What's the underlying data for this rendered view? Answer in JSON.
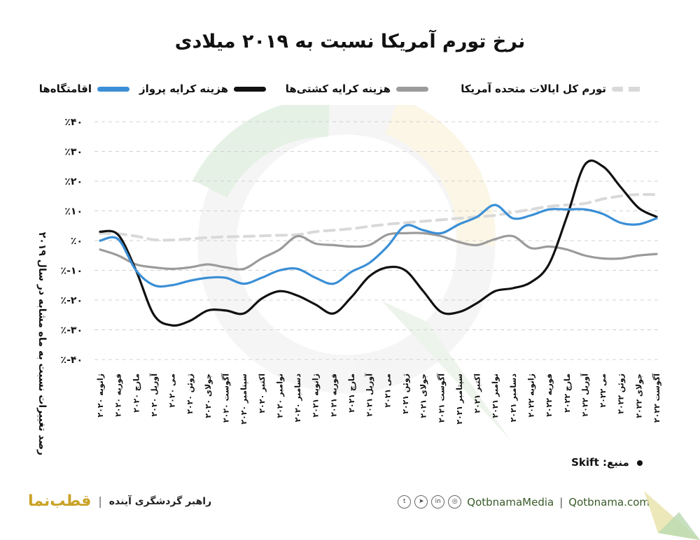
{
  "title": "نرخ تورم آمریکا نسبت به ۲۰۱۹ میلادی",
  "legend": [
    {
      "label": "تورم کل ایالات متحده آمریکا",
      "color": "#d9d9d9",
      "style": "dashed"
    },
    {
      "label": "هزینه کرایه کشتی‌ها",
      "color": "#9b9b9b",
      "style": "solid"
    },
    {
      "label": "هزینه کرایه پرواز",
      "color": "#111111",
      "style": "solid"
    },
    {
      "label": "اقامتگاه‌ها",
      "color": "#3a8fd6",
      "style": "solid"
    }
  ],
  "source": {
    "label": "منبع: Skift"
  },
  "footer": {
    "brand": "قطب‌نما",
    "tagline": "راهبر گردشگری آینده",
    "divider": "|",
    "handle": "QotbnamaMedia",
    "site": "Qotbnama.com",
    "separator": "|",
    "social_icons": [
      "twitter-icon",
      "telegram-icon",
      "linkedin-icon",
      "instagram-icon"
    ]
  },
  "chart_data": {
    "type": "line",
    "ylabel": "درصد تغییرات نسبت به ماه مشابه در سال ۲۰۱۹",
    "ylim": [
      -40,
      40
    ],
    "yticks": [
      40,
      30,
      20,
      10,
      0,
      -10,
      -20,
      -30,
      -40
    ],
    "ytick_labels": [
      "٪۴۰",
      "٪۳۰",
      "٪۲۰",
      "٪۱۰",
      "٪۰",
      "٪-۱۰",
      "٪-۲۰",
      "٪-۳۰",
      "٪-۴۰"
    ],
    "grid": "horizontal dashed",
    "categories": [
      "ژانویه ۲۰۲۰",
      "فوریه ۲۰۲۰",
      "مارچ ۲۰۲۰",
      "آوریل ۲۰۲۰",
      "می ۲۰۲۰",
      "ژوئن ۲۰۲۰",
      "جولای ۲۰۲۰",
      "آگوست ۲۰۲۰",
      "سپتامبر ۲۰۲۰",
      "اکتبر ۲۰۲۰",
      "نوامبر ۲۰۲۰",
      "دسامبر ۲۰۲۰",
      "ژانویه ۲۰۲۱",
      "فوریه ۲۰۲۱",
      "مارچ ۲۰۲۱",
      "آوریل ۲۰۲۱",
      "می ۲۰۲۱",
      "ژوئن ۲۰۲۱",
      "جولای ۲۰۲۱",
      "آگوست ۲۰۲۱",
      "سپتامبر ۲۰۲۱",
      "اکتبر ۲۰۲۱",
      "نوامبر ۲۰۲۱",
      "دسامبر ۲۰۲۱",
      "ژانویه ۲۰۲۲",
      "فوریه ۲۰۲۲",
      "مارچ ۲۰۲۲",
      "آوریل ۲۰۲۲",
      "می ۲۰۲۲",
      "ژوئن ۲۰۲۲",
      "جولای ۲۰۲۲",
      "آگوست ۲۰۲۲"
    ],
    "series": [
      {
        "name": "تورم کل ایالات متحده آمریکا",
        "color": "#d9d9d9",
        "dashed": true,
        "values": [
          2.5,
          2.3,
          1.5,
          0.3,
          0.2,
          0.6,
          1.0,
          1.3,
          1.4,
          1.6,
          1.8,
          2.0,
          3.0,
          3.5,
          4.0,
          4.8,
          5.5,
          6.0,
          6.5,
          7.0,
          7.5,
          8.0,
          8.5,
          9.5,
          10.5,
          11.5,
          12.0,
          12.5,
          14.0,
          15.0,
          15.5,
          15.5
        ]
      },
      {
        "name": "هزینه کرایه کشتی‌ها",
        "color": "#9b9b9b",
        "dashed": false,
        "values": [
          -3,
          -5,
          -8,
          -9,
          -9.5,
          -9,
          -8,
          -9,
          -9.5,
          -6,
          -3,
          1.5,
          -1,
          -1.5,
          -2,
          -1.5,
          2,
          2.5,
          2.5,
          1.5,
          -0.5,
          -1.5,
          0.5,
          1.5,
          -2.5,
          -2,
          -3,
          -5,
          -6,
          -6,
          -5,
          -4.5
        ]
      },
      {
        "name": "هزینه کرایه پرواز",
        "color": "#111111",
        "dashed": false,
        "values": [
          3,
          2,
          -10,
          -25,
          -28.5,
          -27,
          -23.5,
          -23.5,
          -24.5,
          -19.5,
          -17,
          -18.5,
          -21.5,
          -24.5,
          -19,
          -12,
          -9,
          -10,
          -17,
          -24,
          -24,
          -21,
          -17,
          -16,
          -14,
          -8,
          8,
          25.5,
          25,
          18,
          11,
          8
        ]
      },
      {
        "name": "اقامتگاه‌ها",
        "color": "#3a8fd6",
        "dashed": false,
        "values": [
          0,
          0.5,
          -10,
          -15,
          -15,
          -13.5,
          -12.5,
          -12.5,
          -14.5,
          -12.5,
          -10,
          -9.5,
          -12.5,
          -14.5,
          -10.5,
          -7.5,
          -2,
          5,
          3.5,
          2.5,
          5.5,
          8,
          12,
          7.5,
          8.5,
          10.5,
          10.5,
          10.5,
          9,
          6,
          5.5,
          7.5
        ]
      }
    ]
  }
}
